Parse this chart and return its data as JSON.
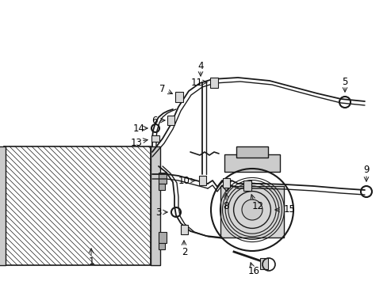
{
  "background_color": "#ffffff",
  "line_color": "#1a1a1a",
  "label_color": "#000000",
  "figsize": [
    4.89,
    3.6
  ],
  "dpi": 100,
  "label_fontsize": 8.5
}
